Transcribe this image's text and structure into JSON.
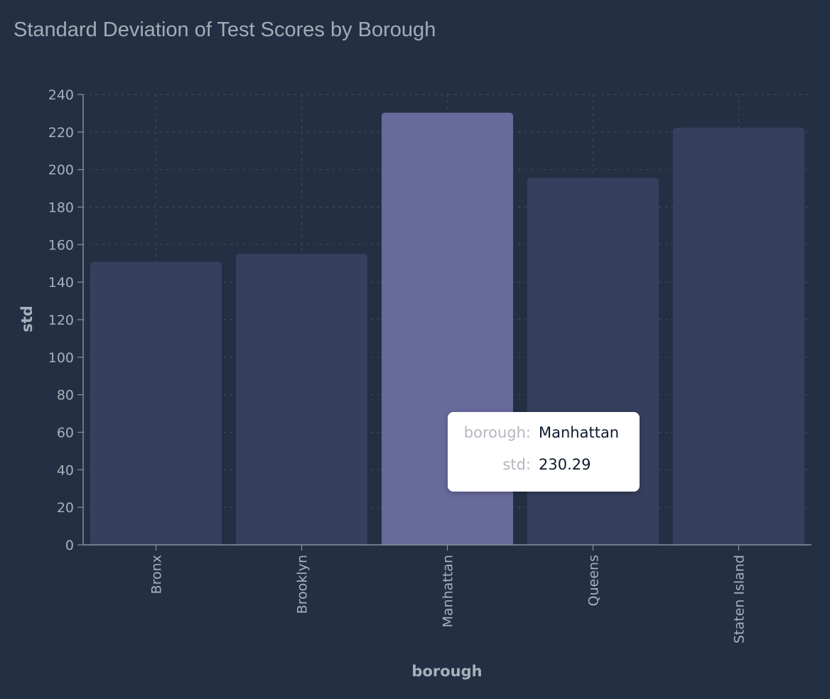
{
  "title": "Standard Deviation of Test Scores by Borough",
  "colors": {
    "background": "#233044",
    "bar": "#36405e",
    "bar_highlight": "#676a9b",
    "grid": "#3f4a5e",
    "axis": "#8a919c",
    "text": "#a9b0bb"
  },
  "tooltip": {
    "rows": [
      {
        "key": "borough:",
        "value": "Manhattan"
      },
      {
        "key": "std:",
        "value": "230.29"
      }
    ]
  },
  "chart_data": {
    "type": "bar",
    "title": "Standard Deviation of Test Scores by Borough",
    "xlabel": "borough",
    "ylabel": "std",
    "categories": [
      "Bronx",
      "Brooklyn",
      "Manhattan",
      "Queens",
      "Staten Island"
    ],
    "values": [
      150.8,
      155.1,
      230.29,
      195.6,
      222.3
    ],
    "highlighted_category": "Manhattan",
    "ylim": [
      0,
      240
    ],
    "yticks": [
      0,
      20,
      40,
      60,
      80,
      100,
      120,
      140,
      160,
      180,
      200,
      220,
      240
    ],
    "grid": true,
    "grid_style": "dotted"
  }
}
